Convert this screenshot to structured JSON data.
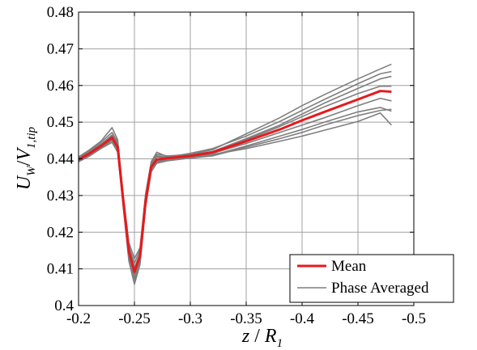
{
  "chart_data": {
    "type": "line",
    "xlabel": {
      "main": "z",
      "sep": " / ",
      "var": "R",
      "sub": "1"
    },
    "ylabel": {
      "main": "U",
      "main_sub": "W",
      "sep": "/",
      "var": "V",
      "sub": "1,tip"
    },
    "xlim": [
      -0.2,
      -0.5
    ],
    "ylim": [
      0.4,
      0.48
    ],
    "x_reversed": true,
    "grid": true,
    "xticks": [
      -0.2,
      -0.25,
      -0.3,
      -0.35,
      -0.4,
      -0.45,
      -0.5
    ],
    "xtick_labels": [
      "-0.2",
      "-0.25",
      "-0.3",
      "-0.35",
      "-0.4",
      "-0.45",
      "-0.5"
    ],
    "yticks": [
      0.4,
      0.41,
      0.42,
      0.43,
      0.44,
      0.45,
      0.46,
      0.47,
      0.48
    ],
    "ytick_labels": [
      "0.4",
      "0.41",
      "0.42",
      "0.43",
      "0.44",
      "0.45",
      "0.46",
      "0.47",
      "0.48"
    ],
    "legend": {
      "placement": "bottom-right",
      "entries": [
        "Mean",
        "Phase Averaged"
      ]
    },
    "colors": {
      "mean": "#e8191c",
      "phase": "#7f7f7f"
    },
    "series": [
      {
        "name": "Mean",
        "color": "#e8191c",
        "x": [
          -0.2,
          -0.21,
          -0.22,
          -0.23,
          -0.235,
          -0.24,
          -0.245,
          -0.25,
          -0.255,
          -0.26,
          -0.265,
          -0.27,
          -0.28,
          -0.3,
          -0.32,
          -0.35,
          -0.38,
          -0.4,
          -0.42,
          -0.45,
          -0.47,
          -0.48
        ],
        "y": [
          0.4398,
          0.4415,
          0.4435,
          0.4458,
          0.4432,
          0.4285,
          0.4148,
          0.4092,
          0.4135,
          0.4285,
          0.4378,
          0.4398,
          0.4402,
          0.4408,
          0.4418,
          0.4448,
          0.448,
          0.4505,
          0.4528,
          0.4562,
          0.4585,
          0.4583
        ]
      },
      {
        "name": "Phase Averaged",
        "color": "#7f7f7f",
        "x": [
          -0.2,
          -0.21,
          -0.22,
          -0.23,
          -0.235,
          -0.24,
          -0.245,
          -0.25,
          -0.255,
          -0.26,
          -0.265,
          -0.27,
          -0.28,
          -0.3,
          -0.32,
          -0.35,
          -0.38,
          -0.4,
          -0.42,
          -0.45,
          -0.47,
          -0.48
        ],
        "y": [
          0.4402,
          0.4422,
          0.4445,
          0.4472,
          0.4445,
          0.4295,
          0.4162,
          0.4115,
          0.4152,
          0.4298,
          0.4388,
          0.4412,
          0.4408,
          0.4412,
          0.4425,
          0.4468,
          0.4512,
          0.4545,
          0.4575,
          0.4618,
          0.4645,
          0.4658
        ]
      },
      {
        "name": "Phase Averaged",
        "color": "#7f7f7f",
        "x": [
          -0.2,
          -0.21,
          -0.22,
          -0.23,
          -0.235,
          -0.24,
          -0.245,
          -0.25,
          -0.255,
          -0.26,
          -0.265,
          -0.27,
          -0.28,
          -0.3,
          -0.32,
          -0.35,
          -0.38,
          -0.4,
          -0.42,
          -0.45,
          -0.47,
          -0.48
        ],
        "y": [
          0.4395,
          0.4412,
          0.4432,
          0.4452,
          0.4425,
          0.4275,
          0.4135,
          0.4075,
          0.4122,
          0.4275,
          0.4372,
          0.4392,
          0.4398,
          0.4405,
          0.4412,
          0.4428,
          0.4448,
          0.4462,
          0.4478,
          0.4502,
          0.4525,
          0.4492
        ]
      },
      {
        "name": "Phase Averaged",
        "color": "#7f7f7f",
        "x": [
          -0.2,
          -0.21,
          -0.22,
          -0.23,
          -0.235,
          -0.24,
          -0.245,
          -0.25,
          -0.255,
          -0.26,
          -0.265,
          -0.27,
          -0.28,
          -0.3,
          -0.32,
          -0.35,
          -0.38,
          -0.4,
          -0.42,
          -0.45,
          -0.47,
          -0.48
        ],
        "y": [
          0.4405,
          0.4425,
          0.4448,
          0.4485,
          0.4452,
          0.4302,
          0.4172,
          0.4128,
          0.4158,
          0.4305,
          0.4392,
          0.4418,
          0.4405,
          0.4415,
          0.4428,
          0.4462,
          0.4502,
          0.4532,
          0.4562,
          0.4605,
          0.4632,
          0.4638
        ]
      },
      {
        "name": "Phase Averaged",
        "color": "#7f7f7f",
        "x": [
          -0.2,
          -0.21,
          -0.22,
          -0.23,
          -0.235,
          -0.24,
          -0.245,
          -0.25,
          -0.255,
          -0.26,
          -0.265,
          -0.27,
          -0.28,
          -0.3,
          -0.32,
          -0.35,
          -0.38,
          -0.4,
          -0.42,
          -0.45,
          -0.47,
          -0.48
        ],
        "y": [
          0.4392,
          0.4408,
          0.4428,
          0.4445,
          0.4418,
          0.4268,
          0.4122,
          0.4058,
          0.4112,
          0.4268,
          0.4365,
          0.4388,
          0.4395,
          0.4402,
          0.4408,
          0.4432,
          0.4455,
          0.4472,
          0.4492,
          0.4518,
          0.4532,
          0.4535
        ]
      },
      {
        "name": "Phase Averaged",
        "color": "#7f7f7f",
        "x": [
          -0.2,
          -0.21,
          -0.22,
          -0.23,
          -0.235,
          -0.24,
          -0.245,
          -0.25,
          -0.255,
          -0.26,
          -0.265,
          -0.27,
          -0.28,
          -0.3,
          -0.32,
          -0.35,
          -0.38,
          -0.4,
          -0.42,
          -0.45,
          -0.47,
          -0.48
        ],
        "y": [
          0.4399,
          0.4418,
          0.4438,
          0.4462,
          0.4436,
          0.4288,
          0.4152,
          0.4098,
          0.4138,
          0.4288,
          0.4382,
          0.4405,
          0.4402,
          0.4408,
          0.4418,
          0.4452,
          0.4488,
          0.4515,
          0.4542,
          0.4578,
          0.4598,
          0.4598
        ]
      },
      {
        "name": "Phase Averaged",
        "color": "#7f7f7f",
        "x": [
          -0.2,
          -0.21,
          -0.22,
          -0.23,
          -0.235,
          -0.24,
          -0.245,
          -0.25,
          -0.255,
          -0.26,
          -0.265,
          -0.27,
          -0.28,
          -0.3,
          -0.32,
          -0.35,
          -0.38,
          -0.4,
          -0.42,
          -0.45,
          -0.47,
          -0.48
        ],
        "y": [
          0.4396,
          0.4412,
          0.4432,
          0.4455,
          0.4428,
          0.4282,
          0.4142,
          0.4085,
          0.4128,
          0.4282,
          0.4376,
          0.4396,
          0.4399,
          0.4406,
          0.4415,
          0.4442,
          0.4472,
          0.4492,
          0.4512,
          0.4545,
          0.4565,
          0.4558
        ]
      },
      {
        "name": "Phase Averaged",
        "color": "#7f7f7f",
        "x": [
          -0.2,
          -0.21,
          -0.22,
          -0.23,
          -0.235,
          -0.24,
          -0.245,
          -0.25,
          -0.255,
          -0.26,
          -0.265,
          -0.27,
          -0.28,
          -0.3,
          -0.32,
          -0.35,
          -0.38,
          -0.4,
          -0.42,
          -0.45,
          -0.47,
          -0.48
        ],
        "y": [
          0.44,
          0.442,
          0.444,
          0.4465,
          0.4438,
          0.429,
          0.4155,
          0.4102,
          0.4142,
          0.4292,
          0.4384,
          0.4408,
          0.4404,
          0.441,
          0.442,
          0.4455,
          0.4492,
          0.4522,
          0.4552,
          0.4592,
          0.4618,
          0.4625
        ]
      },
      {
        "name": "Phase Averaged",
        "color": "#7f7f7f",
        "x": [
          -0.2,
          -0.21,
          -0.22,
          -0.23,
          -0.235,
          -0.24,
          -0.245,
          -0.25,
          -0.255,
          -0.26,
          -0.265,
          -0.27,
          -0.28,
          -0.3,
          -0.32,
          -0.35,
          -0.38,
          -0.4,
          -0.42,
          -0.45,
          -0.47,
          -0.48
        ],
        "y": [
          0.4394,
          0.441,
          0.443,
          0.445,
          0.4422,
          0.4272,
          0.413,
          0.4068,
          0.4118,
          0.4272,
          0.4368,
          0.439,
          0.4396,
          0.4403,
          0.441,
          0.4435,
          0.4462,
          0.448,
          0.45,
          0.4528,
          0.454,
          0.453
        ]
      }
    ]
  }
}
